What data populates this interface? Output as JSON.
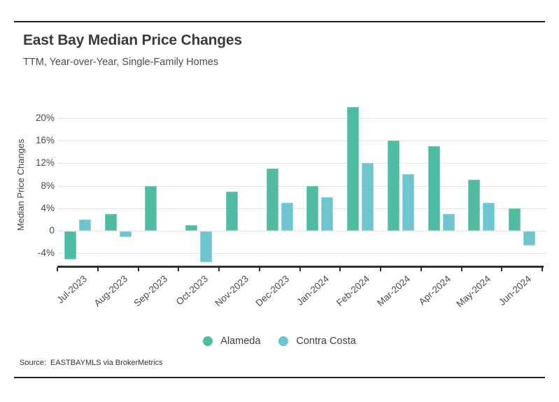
{
  "page": {
    "title": "East Bay Median Price Changes",
    "subtitle": "TTM, Year-over-Year, Single-Family Homes",
    "source": "Source:  EASTBAYMLS via BrokerMetrics"
  },
  "chart_data": {
    "type": "bar",
    "title": "East Bay Median Price Changes",
    "subtitle": "TTM, Year-over-Year, Single-Family Homes",
    "xlabel": "",
    "ylabel": "Median Price Changes",
    "categories": [
      "Jul-2023",
      "Aug-2023",
      "Sep-2023",
      "Oct-2023",
      "Nov-2023",
      "Dec-2023",
      "Jan-2024",
      "Feb-2024",
      "Mar-2024",
      "Apr-2024",
      "May-2024",
      "Jun-2024"
    ],
    "series": [
      {
        "name": "Alameda",
        "color": "#4fbba3",
        "values": [
          -5,
          3,
          8,
          1,
          7,
          11,
          8,
          22,
          16,
          15,
          9,
          4
        ]
      },
      {
        "name": "Contra Costa",
        "color": "#6ec5cf",
        "values": [
          2,
          -1,
          null,
          -5.5,
          null,
          5,
          6,
          12,
          10,
          3,
          5,
          -2.5
        ]
      }
    ],
    "yticks": [
      20,
      16,
      12,
      8,
      4,
      0,
      -4
    ],
    "ytick_labels": [
      "20%",
      "16%",
      "12%",
      "8%",
      "4%",
      "0",
      "-4%"
    ],
    "ylim": [
      -6.2,
      22.6
    ],
    "grid": "horizontal",
    "legend_position": "bottom",
    "colors": {
      "gridline": "#e3e3e3",
      "axis": "#2e2e2e",
      "text": "#4a4a4a"
    }
  },
  "legend": {
    "items": [
      {
        "label": "Alameda",
        "color": "#4fbba3"
      },
      {
        "label": "Contra Costa",
        "color": "#6ec5cf"
      }
    ]
  }
}
